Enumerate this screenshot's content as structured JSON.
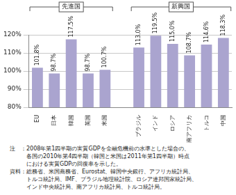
{
  "chart_data": {
    "type": "bar",
    "categories": [
      "EU",
      "日本",
      "韓国",
      "英国",
      "米国",
      null,
      "ブラジル",
      "インド",
      "ロシア",
      "南アフリカ",
      "トルコ",
      "中国"
    ],
    "values": [
      101.8,
      98.7,
      117.5,
      98.7,
      100.7,
      null,
      113.0,
      119.5,
      115.0,
      108.7,
      114.6,
      118.3
    ],
    "value_labels": [
      "101.8%",
      "98.7%",
      "117.5%",
      "98.7%",
      "100.7%",
      null,
      "113.0%",
      "119.5%",
      "115.0%",
      "108.7%",
      "114.6%",
      "118.3%"
    ],
    "data_labels": true,
    "color": "#aaa4cf",
    "ylim": [
      80,
      120
    ],
    "yticks": [
      {
        "value": 80,
        "label": "80%"
      },
      {
        "value": 90,
        "label": "90%"
      },
      {
        "value": 100,
        "label": "100%"
      },
      {
        "value": 110,
        "label": "110%"
      },
      {
        "value": 120,
        "label": "120%"
      }
    ],
    "grid": true,
    "groups": [
      {
        "name": "先進国",
        "categories": [
          "EU",
          "日本",
          "韓国",
          "英国",
          "米国"
        ]
      },
      {
        "name": "新興国",
        "categories": [
          "ブラジル",
          "インド",
          "ロシア",
          "南アフリカ",
          "トルコ",
          "中国"
        ]
      }
    ],
    "annotations": [
      "注　：2008年第1四半期の実質GDPを金融危機前の水準とした場合の、",
      "　　　各国の2010年第4四半期（韓国と米国は2011年第1四半期）時点",
      "　　　における実質GDPの回復率を示した。",
      "資料：総務省、米国商務省、Eurostat、韓国中央銀行、アフリカ統計局、",
      "　　　トルコ統計局、IMF、ブラジル地理統計院、ロシア連邦国家統計局、",
      "　　　インド中央統計局、南アフリカ統計局、トルコ統計局。"
    ]
  }
}
